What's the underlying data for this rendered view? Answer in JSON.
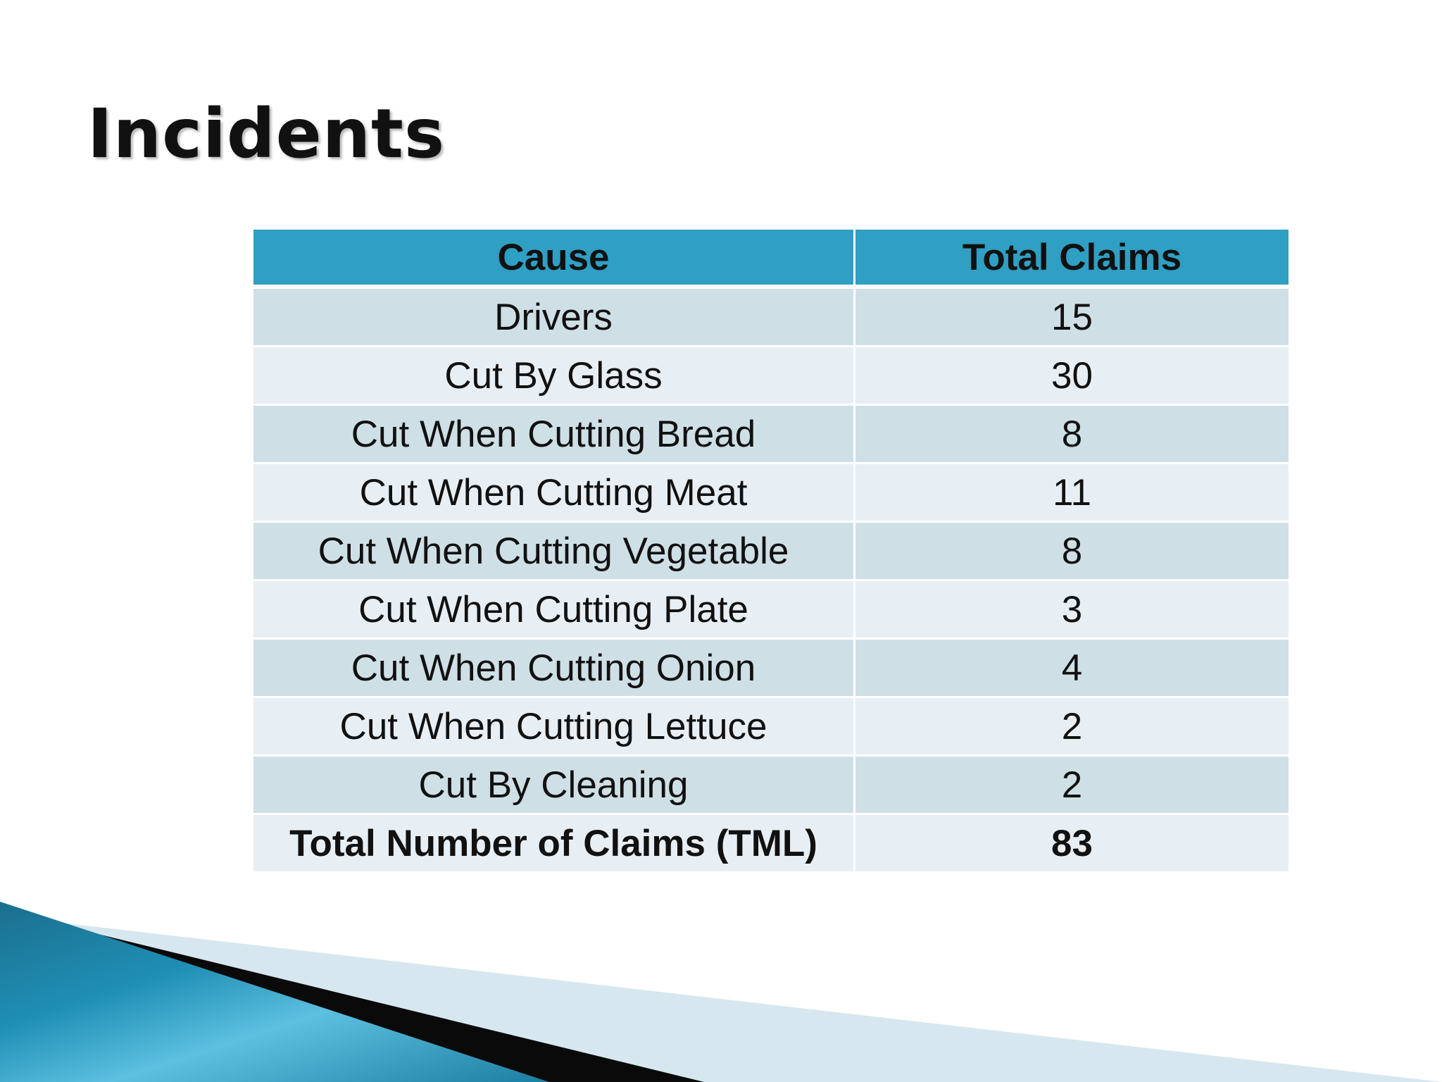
{
  "slide": {
    "title": "Incidents"
  },
  "table": {
    "headers": [
      "Cause",
      "Total Claims"
    ],
    "rows": [
      {
        "cause": "Drivers",
        "claims": "15"
      },
      {
        "cause": "Cut By Glass",
        "claims": "30"
      },
      {
        "cause": "Cut When Cutting Bread",
        "claims": "8"
      },
      {
        "cause": "Cut When Cutting Meat",
        "claims": "11"
      },
      {
        "cause": "Cut When Cutting Vegetable",
        "claims": "8"
      },
      {
        "cause": "Cut When Cutting Plate",
        "claims": "3"
      },
      {
        "cause": "Cut When Cutting Onion",
        "claims": "4"
      },
      {
        "cause": "Cut When Cutting Lettuce",
        "claims": "2"
      },
      {
        "cause": "Cut By Cleaning",
        "claims": "2"
      }
    ],
    "total": {
      "cause": "Total Number of Claims (TML)",
      "claims": "83"
    }
  },
  "colors": {
    "header": "#2f9fc3",
    "row_dark": "#cfdfe6",
    "row_light": "#e8eff4",
    "accent_swoosh": "#1f8fb5"
  }
}
